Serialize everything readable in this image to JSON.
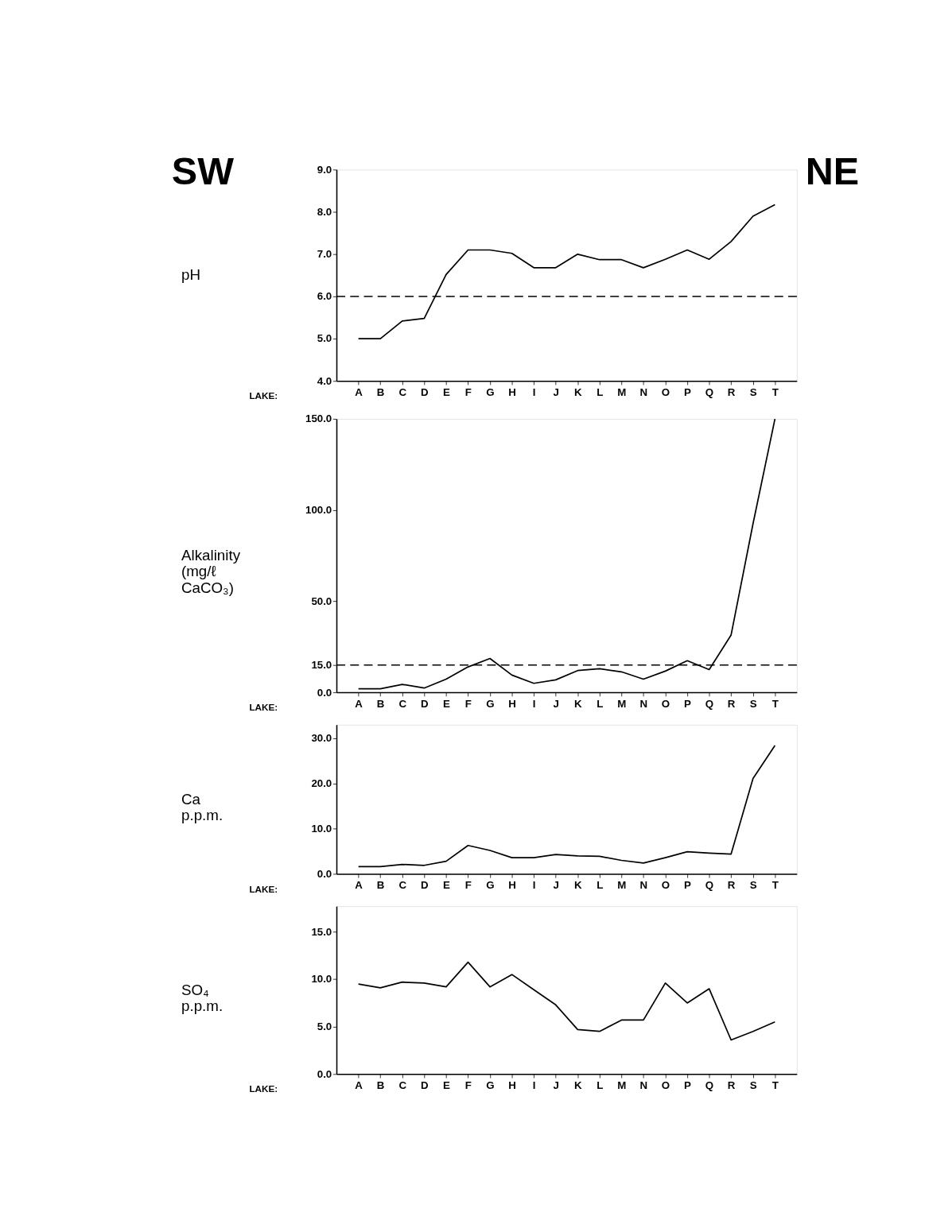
{
  "chart_data": [
    {
      "type": "line",
      "ylabel": "pH",
      "xlabel": "LAKE:",
      "annotations": [
        "SW",
        "NE"
      ],
      "categories": [
        "A",
        "B",
        "C",
        "D",
        "E",
        "F",
        "G",
        "H",
        "I",
        "J",
        "K",
        "L",
        "M",
        "N",
        "O",
        "P",
        "Q",
        "R",
        "S",
        "T"
      ],
      "series": [
        {
          "color": "#000000",
          "values": [
            5.0,
            5.0,
            5.42,
            5.48,
            6.52,
            7.1,
            7.1,
            7.02,
            6.68,
            6.68,
            7.0,
            6.87,
            6.87,
            6.68,
            6.88,
            7.1,
            6.88,
            7.3,
            7.9,
            8.17
          ]
        }
      ],
      "ylim": [
        4,
        9
      ],
      "yticks": [
        {
          "value": 4,
          "label": "4.0"
        },
        {
          "value": 5,
          "label": "5.0"
        },
        {
          "value": 6,
          "label": "6.0"
        },
        {
          "value": 7,
          "label": "7.0"
        },
        {
          "value": 8,
          "label": "8.0"
        },
        {
          "value": 9,
          "label": "9.0"
        }
      ],
      "ref_lines": [
        {
          "axis": "y",
          "value": 6,
          "line_style": "dashed",
          "color": "#000000"
        }
      ],
      "grid": false,
      "marker": "none",
      "line_style": "solid"
    },
    {
      "type": "line",
      "ylabel": "Alkalinity (mg/ℓ CaCO₃)",
      "xlabel": "LAKE:",
      "categories": [
        "A",
        "B",
        "C",
        "D",
        "E",
        "F",
        "G",
        "H",
        "I",
        "J",
        "K",
        "L",
        "M",
        "N",
        "O",
        "P",
        "Q",
        "R",
        "S",
        "T"
      ],
      "series": [
        {
          "color": "#000000",
          "values": [
            2.0,
            2.0,
            4.4,
            2.4,
            7.3,
            14,
            18.6,
            9.5,
            5,
            6.9,
            12,
            13,
            11.3,
            7.3,
            11.7,
            17.4,
            12.5,
            31.5,
            92.5,
            150
          ]
        }
      ],
      "ylim": [
        0,
        150
      ],
      "yticks": [
        {
          "value": 0,
          "label": "0.0"
        },
        {
          "value": 15,
          "label": "15.0"
        },
        {
          "value": 50,
          "label": "50.0"
        },
        {
          "value": 100,
          "label": "100.0"
        },
        {
          "value": 150,
          "label": "150.0"
        }
      ],
      "ref_lines": [
        {
          "axis": "y",
          "value": 15,
          "line_style": "dashed",
          "color": "#000000"
        }
      ],
      "grid": false,
      "marker": "none",
      "line_style": "solid"
    },
    {
      "type": "line",
      "ylabel": "Ca p.p.m.",
      "xlabel": "LAKE:",
      "categories": [
        "A",
        "B",
        "C",
        "D",
        "E",
        "F",
        "G",
        "H",
        "I",
        "J",
        "K",
        "L",
        "M",
        "N",
        "O",
        "P",
        "Q",
        "R",
        "S",
        "T"
      ],
      "series": [
        {
          "color": "#000000",
          "values": [
            1.6,
            1.6,
            2.1,
            1.9,
            2.8,
            6.3,
            5.2,
            3.6,
            3.6,
            4.3,
            4.0,
            3.9,
            3.0,
            2.4,
            3.6,
            4.9,
            4.6,
            4.4,
            21.1,
            28.4
          ]
        }
      ],
      "ylim": [
        0,
        33
      ],
      "yticks": [
        {
          "value": 0,
          "label": "0.0"
        },
        {
          "value": 10,
          "label": "10.0"
        },
        {
          "value": 20,
          "label": "20.0"
        },
        {
          "value": 30,
          "label": "30.0"
        }
      ],
      "grid": false,
      "marker": "none",
      "line_style": "solid"
    },
    {
      "type": "line",
      "ylabel": "SO₄ p.p.m.",
      "xlabel": "LAKE:",
      "categories": [
        "A",
        "B",
        "C",
        "D",
        "E",
        "F",
        "G",
        "H",
        "I",
        "J",
        "K",
        "L",
        "M",
        "N",
        "O",
        "P",
        "Q",
        "R",
        "S",
        "T"
      ],
      "series": [
        {
          "color": "#000000",
          "values": [
            9.5,
            9.1,
            9.7,
            9.6,
            9.2,
            11.8,
            9.2,
            10.5,
            8.9,
            7.3,
            4.7,
            4.5,
            5.7,
            5.7,
            9.6,
            7.5,
            9.0,
            3.6,
            4.5,
            5.5
          ]
        }
      ],
      "ylim": [
        0,
        17.7
      ],
      "yticks": [
        {
          "value": 0,
          "label": "0.0"
        },
        {
          "value": 5,
          "label": "5.0"
        },
        {
          "value": 10,
          "label": "10.0"
        },
        {
          "value": 15,
          "label": "15.0"
        }
      ],
      "grid": false,
      "marker": "none",
      "line_style": "solid"
    }
  ]
}
